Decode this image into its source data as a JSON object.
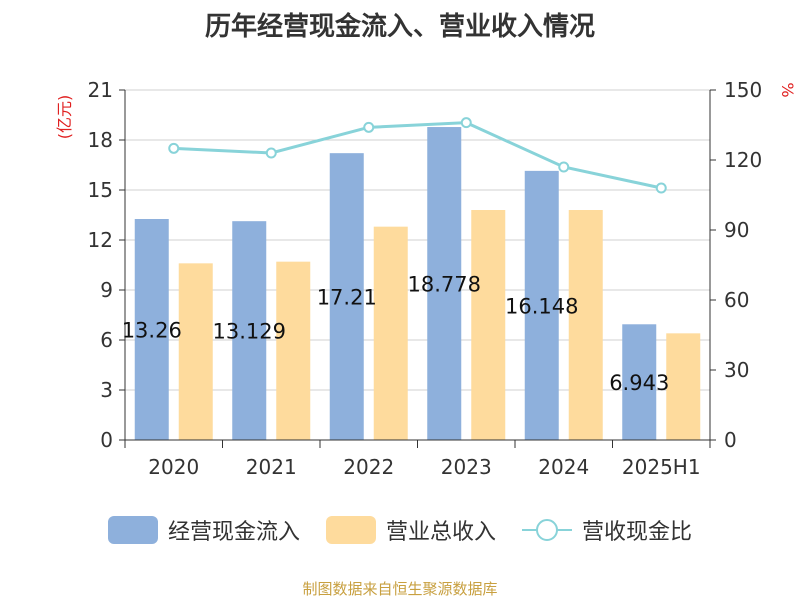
{
  "chart_data": {
    "type": "bar",
    "title": "历年经营现金流入、营业收入情况",
    "categories": [
      "2020",
      "2021",
      "2022",
      "2023",
      "2024",
      "2025H1"
    ],
    "series": [
      {
        "name": "经营现金流入",
        "type": "bar",
        "axis": "left",
        "color": "#8eb0dc",
        "values": [
          13.26,
          13.129,
          17.21,
          18.778,
          16.148,
          6.943
        ],
        "labels": [
          "13.26",
          "13.129",
          "17.21",
          "18.778",
          "16.148",
          "6.943"
        ]
      },
      {
        "name": "营业总收入",
        "type": "bar",
        "axis": "left",
        "color": "#fedb9d",
        "values": [
          10.6,
          10.7,
          12.8,
          13.8,
          13.8,
          6.4
        ]
      },
      {
        "name": "营收现金比",
        "type": "line",
        "axis": "right",
        "color": "#88d3d9",
        "values": [
          125,
          123,
          134,
          136,
          117,
          108
        ]
      }
    ],
    "y_left": {
      "label": "(亿元)",
      "min": 0,
      "max": 21,
      "ticks": [
        0,
        3,
        6,
        9,
        12,
        15,
        18,
        21
      ]
    },
    "y_right": {
      "label": "%",
      "min": 0,
      "max": 150,
      "ticks": [
        0,
        30,
        60,
        90,
        120,
        150
      ]
    },
    "grid": true,
    "legend_position": "bottom"
  },
  "source": "制图数据来自恒生聚源数据库"
}
